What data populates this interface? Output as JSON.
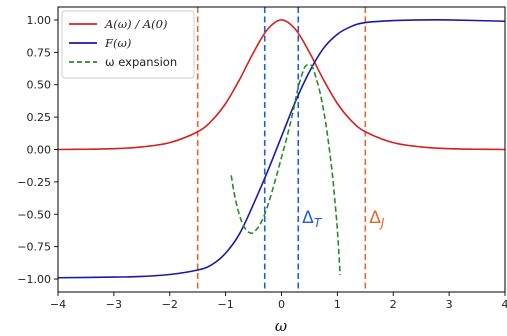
{
  "chart_data": {
    "type": "line",
    "xlabel": "ω",
    "ylabel": "",
    "xlim": [
      -4,
      4
    ],
    "ylim": [
      -1.1,
      1.1
    ],
    "xticks": [
      -4,
      -3,
      -2,
      -1,
      0,
      1,
      2,
      3,
      4
    ],
    "yticks": [
      -1.0,
      -0.75,
      -0.5,
      -0.25,
      0.0,
      0.25,
      0.5,
      0.75,
      1.0
    ],
    "xtick_labels": [
      "−4",
      "−3",
      "−2",
      "−1",
      "0",
      "1",
      "2",
      "3",
      "4"
    ],
    "ytick_labels": [
      "−1.00",
      "−0.75",
      "−0.50",
      "−0.25",
      "0.00",
      "0.25",
      "0.50",
      "0.75",
      "1.00"
    ],
    "grid": false,
    "legend_position": "top-left",
    "series": [
      {
        "name": "A(ω) / A(0)",
        "color": "#d62020",
        "style": "solid",
        "x": [
          -4.0,
          -3.5,
          -3.0,
          -2.5,
          -2.0,
          -1.5,
          -1.25,
          -1.0,
          -0.75,
          -0.5,
          -0.25,
          0.0,
          0.25,
          0.5,
          0.75,
          1.0,
          1.25,
          1.5,
          2.0,
          2.5,
          3.0,
          3.5,
          4.0
        ],
        "y": [
          0.0,
          0.002,
          0.006,
          0.02,
          0.053,
          0.137,
          0.222,
          0.355,
          0.54,
          0.75,
          0.927,
          1.0,
          0.927,
          0.75,
          0.54,
          0.355,
          0.222,
          0.137,
          0.053,
          0.02,
          0.006,
          0.002,
          0.0
        ]
      },
      {
        "name": "F(ω)",
        "color": "#1a1aa8",
        "style": "solid",
        "x": [
          -4.0,
          -3.0,
          -2.5,
          -2.0,
          -1.5,
          -1.25,
          -1.0,
          -0.75,
          -0.5,
          -0.25,
          0.0,
          0.25,
          0.5,
          0.75,
          1.0,
          1.25,
          1.5,
          2.0,
          2.5,
          3.0,
          4.0
        ],
        "y": [
          -0.99,
          -0.985,
          -0.98,
          -0.965,
          -0.93,
          -0.89,
          -0.8,
          -0.65,
          -0.42,
          -0.17,
          0.1,
          0.37,
          0.6,
          0.78,
          0.89,
          0.95,
          0.98,
          0.995,
          1.0,
          1.0,
          0.99
        ]
      },
      {
        "name": "ω expansion",
        "color": "#2a8a2a",
        "style": "dashed",
        "x": [
          -0.9,
          -0.85,
          -0.8,
          -0.75,
          -0.7,
          -0.65,
          -0.6,
          -0.55,
          -0.5,
          -0.4,
          -0.3,
          -0.2,
          -0.1,
          0.0,
          0.1,
          0.2,
          0.3,
          0.4,
          0.45,
          0.5,
          0.55,
          0.6,
          0.7,
          0.8,
          0.9,
          0.95,
          1.0,
          1.05
        ],
        "y": [
          -0.2,
          -0.33,
          -0.43,
          -0.51,
          -0.57,
          -0.61,
          -0.635,
          -0.645,
          -0.64,
          -0.59,
          -0.5,
          -0.37,
          -0.22,
          -0.06,
          0.1,
          0.28,
          0.48,
          0.62,
          0.65,
          0.655,
          0.64,
          0.58,
          0.42,
          0.18,
          -0.15,
          -0.37,
          -0.62,
          -0.97
        ]
      }
    ],
    "vlines": [
      {
        "x": -1.5,
        "color": "#e06a2a",
        "style": "dashed"
      },
      {
        "x": -0.3,
        "color": "#1f5fd6",
        "style": "dashed"
      },
      {
        "x": 0.3,
        "color": "#1f5fd6",
        "style": "dashed"
      },
      {
        "x": 1.5,
        "color": "#e06a2a",
        "style": "dashed"
      }
    ],
    "annotations": [
      {
        "text": "Δ_T",
        "base": "Δ",
        "sub": "T",
        "x": 0.37,
        "y": -0.52,
        "color": "#1f5fd6"
      },
      {
        "text": "Δ_J",
        "base": "Δ",
        "sub": "J",
        "x": 1.57,
        "y": -0.52,
        "color": "#e06a2a"
      }
    ]
  }
}
